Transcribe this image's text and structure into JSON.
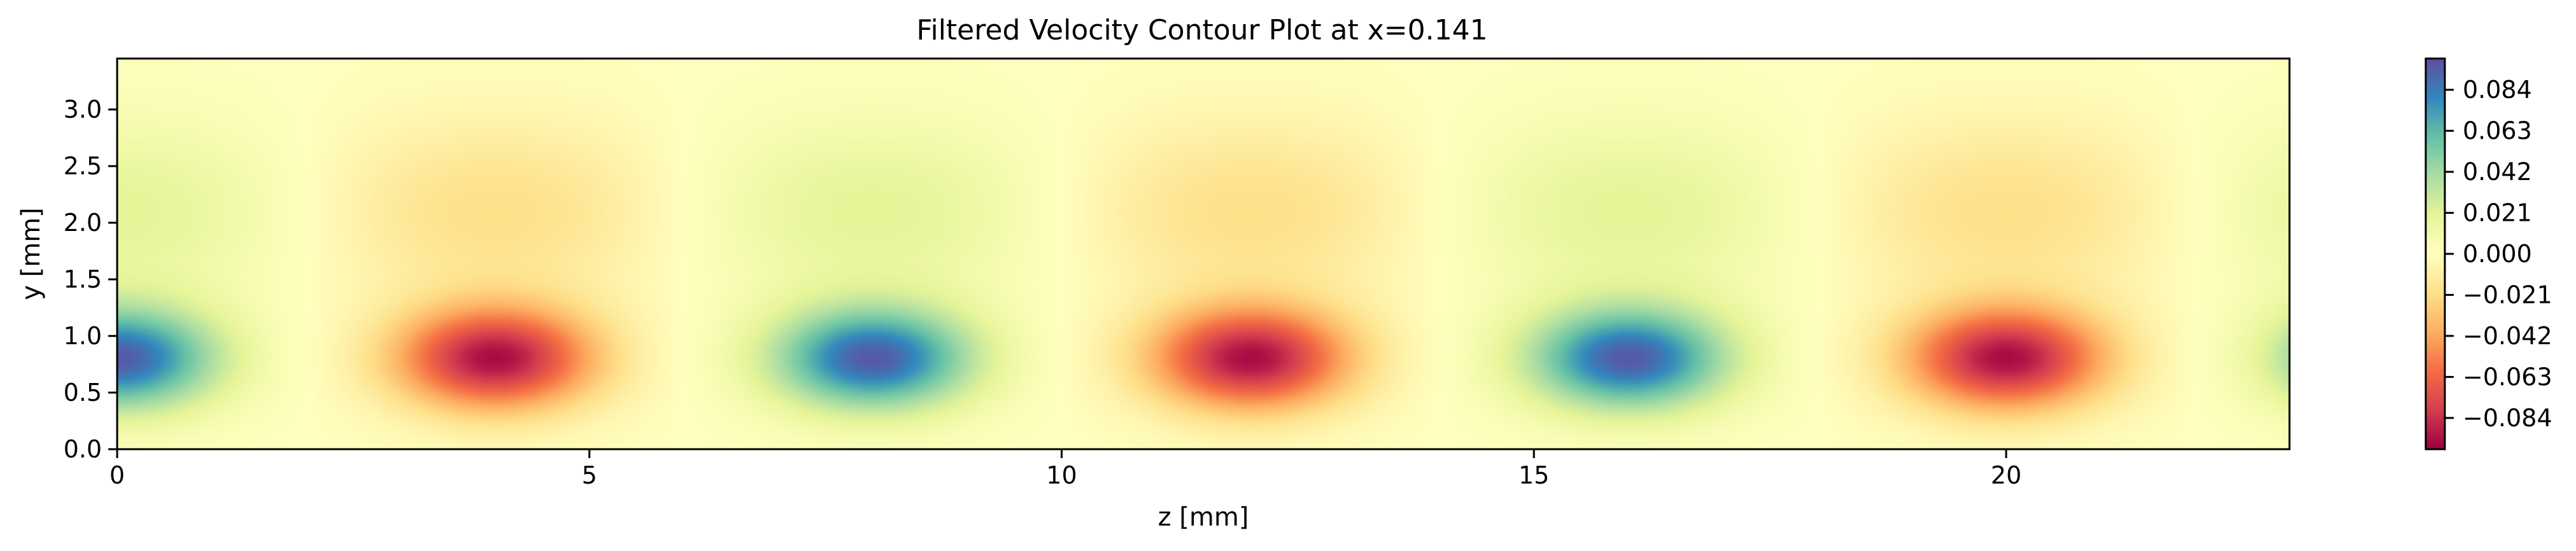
{
  "chart_data": {
    "type": "heatmap",
    "title": "Filtered Velocity Contour Plot at x=0.141",
    "xlabel": "z [mm]",
    "ylabel": "y [mm]",
    "xlim": [
      0,
      23
    ],
    "ylim": [
      0,
      3.45
    ],
    "x_ticks": [
      0,
      5,
      10,
      15,
      20
    ],
    "y_ticks": [
      0.0,
      0.5,
      1.0,
      1.5,
      2.0,
      2.5,
      3.0
    ],
    "y_tick_labels": [
      "0.0",
      "0.5",
      "1.0",
      "1.5",
      "2.0",
      "2.5",
      "3.0"
    ],
    "colormap": "Spectral",
    "colormap_stops": [
      "#9e0142",
      "#d53e4f",
      "#f46d43",
      "#fdae61",
      "#fee08b",
      "#ffffbf",
      "#e6f598",
      "#abdda4",
      "#66c2a5",
      "#3288bd",
      "#5e4fa2"
    ],
    "colorbar": {
      "vmin": -0.1,
      "vmax": 0.1,
      "ticks": [
        0.084,
        0.063,
        0.042,
        0.021,
        0.0,
        -0.021,
        -0.042,
        -0.063,
        -0.084
      ],
      "tick_labels": [
        "0.084",
        "0.063",
        "0.042",
        "0.021",
        "0.000",
        "−0.021",
        "−0.042",
        "−0.063",
        "−0.084"
      ]
    },
    "field": {
      "description_values": "velocity extrema along y=0.8 mm",
      "extrema": [
        {
          "z": 0,
          "y": 0.8,
          "value": 0.095
        },
        {
          "z": 4,
          "y": 0.8,
          "value": -0.095
        },
        {
          "z": 8,
          "y": 0.8,
          "value": 0.095
        },
        {
          "z": 12,
          "y": 0.8,
          "value": -0.095
        },
        {
          "z": 16,
          "y": 0.8,
          "value": 0.095
        },
        {
          "z": 20,
          "y": 0.8,
          "value": -0.095
        },
        {
          "z": 24,
          "y": 0.8,
          "value": 0.095
        }
      ],
      "upper_band": {
        "y": 2.1,
        "value_amplitude": 0.02
      }
    }
  }
}
